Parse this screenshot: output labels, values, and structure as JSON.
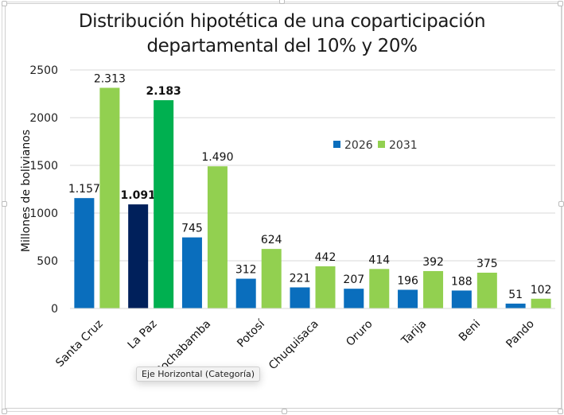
{
  "chart_data": {
    "type": "bar",
    "title": "Distribución hipotética de una coparticipación departamental del 10% y 20%",
    "title_lines": [
      "Distribución hipotética de una coparticipación",
      "departamental del 10% y 20%"
    ],
    "xlabel": "",
    "ylabel": "Millones de bolivianos",
    "ylim": [
      0,
      2500
    ],
    "yticks": [
      0,
      500,
      1000,
      1500,
      2000,
      2500
    ],
    "grid": true,
    "legend_position": "upper-center-right",
    "categories": [
      "Santa Cruz",
      "La Paz",
      "Cochabamba",
      "Potosí",
      "Chuquisaca",
      "Oruro",
      "Tarija",
      "Beni",
      "Pando"
    ],
    "series": [
      {
        "name": "2026",
        "color": "#0a6ebd",
        "values": [
          1157,
          1091,
          745,
          312,
          221,
          207,
          196,
          188,
          51
        ],
        "labels": [
          "1.157",
          "1.091",
          "745",
          "312",
          "221",
          "207",
          "196",
          "188",
          "51"
        ]
      },
      {
        "name": "2031",
        "color": "#92d050",
        "values": [
          2313,
          2183,
          1490,
          624,
          442,
          414,
          392,
          375,
          102
        ],
        "labels": [
          "2.313",
          "2.183",
          "1.490",
          "624",
          "442",
          "414",
          "392",
          "375",
          "102"
        ]
      }
    ],
    "highlight": {
      "category": "La Paz",
      "colors": {
        "2026": "#00205b",
        "2031": "#00b050"
      },
      "bold_labels": true
    }
  },
  "tooltip": {
    "text": "Eje Horizontal (Categoría)"
  }
}
